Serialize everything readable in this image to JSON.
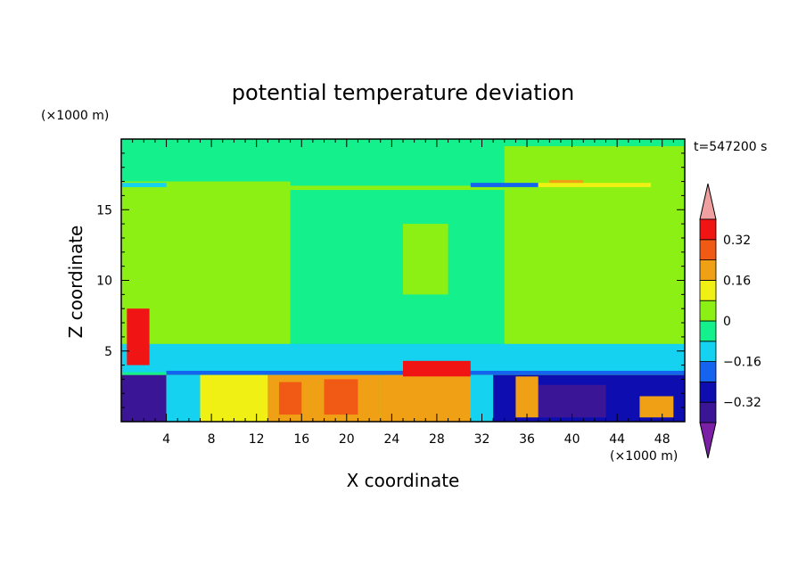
{
  "chart_data": {
    "type": "heatmap",
    "title": "potential temperature deviation",
    "xlabel": "X coordinate",
    "ylabel": "Z coordinate",
    "x_unit": "(×1000 m)",
    "y_unit": "(×1000 m)",
    "time_label": "t=547200 s",
    "xlim": [
      0,
      50
    ],
    "ylim": [
      0,
      20
    ],
    "x_ticks": [
      4,
      8,
      12,
      16,
      20,
      24,
      28,
      32,
      36,
      40,
      44,
      48
    ],
    "y_ticks": [
      5,
      10,
      15
    ],
    "colorbar": {
      "levels": [
        -0.4,
        -0.32,
        -0.24,
        -0.16,
        -0.08,
        0,
        0.08,
        0.16,
        0.24,
        0.32,
        0.4
      ],
      "colors": [
        "#7a1fa6",
        "#3a1696",
        "#0e0eb0",
        "#1464f0",
        "#14d2f0",
        "#14f08c",
        "#8cf014",
        "#f0f014",
        "#f0a014",
        "#f05a14",
        "#f01414",
        "#f0a0a0"
      ],
      "tick_values": [
        0.32,
        0.16,
        0,
        -0.16,
        -0.32
      ],
      "tick_labels": [
        "0.32",
        "0.16",
        "0",
        "−0.16",
        "−0.32"
      ]
    },
    "regions": [
      {
        "x": [
          0,
          50
        ],
        "z": [
          0,
          20
        ],
        "value": -0.04
      },
      {
        "x": [
          0,
          15
        ],
        "z": [
          5,
          17
        ],
        "value": 0.04
      },
      {
        "x": [
          3,
          5
        ],
        "z": [
          10,
          14
        ],
        "value": 0.04
      },
      {
        "x": [
          25,
          29
        ],
        "z": [
          9,
          14
        ],
        "value": 0.04
      },
      {
        "x": [
          34,
          50
        ],
        "z": [
          5,
          19.5
        ],
        "value": 0.04
      },
      {
        "x": [
          0,
          50
        ],
        "z": [
          16.4,
          16.7
        ],
        "value": 0.04
      },
      {
        "x": [
          0,
          4
        ],
        "z": [
          16.6,
          16.9
        ],
        "value": -0.12
      },
      {
        "x": [
          31,
          37
        ],
        "z": [
          16.6,
          16.9
        ],
        "value": -0.2
      },
      {
        "x": [
          37,
          47
        ],
        "z": [
          16.6,
          16.9
        ],
        "value": 0.12
      },
      {
        "x": [
          38,
          41
        ],
        "z": [
          16.9,
          17.1
        ],
        "value": 0.2
      },
      {
        "x": [
          0,
          50
        ],
        "z": [
          3.5,
          5.5
        ],
        "value": -0.12
      },
      {
        "x": [
          4,
          50
        ],
        "z": [
          3.3,
          3.6
        ],
        "value": -0.2
      },
      {
        "x": [
          0,
          50
        ],
        "z": [
          0,
          3.3
        ],
        "value": 0.04
      },
      {
        "x": [
          0,
          4
        ],
        "z": [
          0,
          3.3
        ],
        "value": -0.36
      },
      {
        "x": [
          4,
          7
        ],
        "z": [
          0,
          3.3
        ],
        "value": -0.12
      },
      {
        "x": [
          7,
          13
        ],
        "z": [
          0,
          3.3
        ],
        "value": 0.12
      },
      {
        "x": [
          13,
          23
        ],
        "z": [
          0,
          3.3
        ],
        "value": 0.2
      },
      {
        "x": [
          14,
          16
        ],
        "z": [
          0.5,
          2.8
        ],
        "value": 0.28
      },
      {
        "x": [
          18,
          21
        ],
        "z": [
          0.5,
          3
        ],
        "value": 0.28
      },
      {
        "x": [
          23,
          31
        ],
        "z": [
          0,
          3.3
        ],
        "value": 0.2
      },
      {
        "x": [
          25,
          31
        ],
        "z": [
          3.2,
          4.3
        ],
        "value": 0.36
      },
      {
        "x": [
          0.5,
          2.5
        ],
        "z": [
          4,
          8
        ],
        "value": 0.36
      },
      {
        "x": [
          31,
          33
        ],
        "z": [
          0,
          3.3
        ],
        "value": -0.12
      },
      {
        "x": [
          33,
          50
        ],
        "z": [
          0,
          3.3
        ],
        "value": -0.28
      },
      {
        "x": [
          37,
          43
        ],
        "z": [
          0.3,
          2.6
        ],
        "value": -0.36
      },
      {
        "x": [
          35,
          37
        ],
        "z": [
          0.3,
          3.2
        ],
        "value": 0.2
      },
      {
        "x": [
          46,
          49
        ],
        "z": [
          0.3,
          1.8
        ],
        "value": 0.2
      }
    ]
  }
}
